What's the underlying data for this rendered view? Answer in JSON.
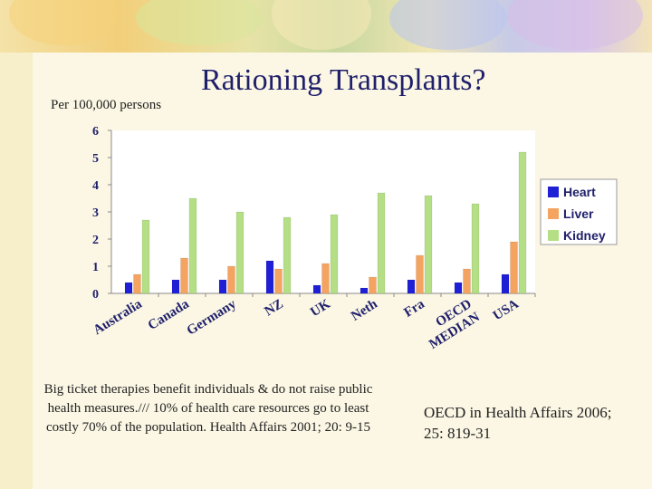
{
  "slide": {
    "title": "Rationing Transplants?",
    "unit_label": "Per 100,000 persons",
    "note_left": "Big ticket therapies benefit individuals & do not raise public health measures./// 10% of health care resources go to least costly 70% of the population. Health Affairs 2001; 20: 9-15",
    "note_right": "OECD in Health Affairs 2006; 25: 819-31"
  },
  "chart_data": {
    "type": "bar",
    "categories": [
      "Australia",
      "Canada",
      "Germany",
      "NZ",
      "UK",
      "Neth",
      "Fra",
      "OECD MEDIAN",
      "USA"
    ],
    "series": [
      {
        "name": "Heart",
        "color": "#1f1fd6",
        "values": [
          0.4,
          0.5,
          0.5,
          1.2,
          0.3,
          0.2,
          0.5,
          0.4,
          0.7
        ]
      },
      {
        "name": "Liver",
        "color": "#f4a460",
        "values": [
          0.7,
          1.3,
          1.0,
          0.9,
          1.1,
          0.6,
          1.4,
          0.9,
          1.9
        ]
      },
      {
        "name": "Kidney",
        "color": "#b4df85",
        "values": [
          2.7,
          3.5,
          3.0,
          2.8,
          2.9,
          3.7,
          3.6,
          3.3,
          5.2
        ]
      }
    ],
    "y_ticks": [
      "0",
      "1",
      "2",
      "3",
      "4",
      "5",
      "6"
    ],
    "ylim": [
      0,
      6
    ],
    "grid": false,
    "legend_position": "right"
  }
}
